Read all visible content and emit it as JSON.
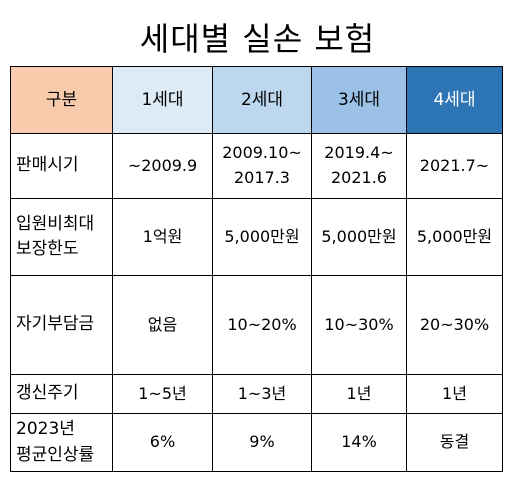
{
  "title": "세대별 실손 보험",
  "header": [
    "구분",
    "1세대",
    "2세대",
    "3세대",
    "4세대"
  ],
  "rows": [
    {
      "label": [
        "판매시기"
      ],
      "cells": [
        [
          "~2009.9"
        ],
        [
          "2009.10~",
          "2017.3"
        ],
        [
          "2019.4~",
          "2021.6"
        ],
        [
          "2021.7~"
        ]
      ]
    },
    {
      "label": [
        "입원비최대",
        "보장한도"
      ],
      "cells": [
        [
          "1억원"
        ],
        [
          "5,000만원"
        ],
        [
          "5,000만원"
        ],
        [
          "5,000만원"
        ]
      ]
    },
    {
      "label": [
        "자기부담금"
      ],
      "cells": [
        [
          "없음"
        ],
        [
          "10~20%"
        ],
        [
          "10~30%"
        ],
        [
          "20~30%"
        ]
      ]
    },
    {
      "label": [
        "갱신주기"
      ],
      "cells": [
        [
          "1~5년"
        ],
        [
          "1~3년"
        ],
        [
          "1년"
        ],
        [
          "1년"
        ]
      ]
    },
    {
      "label": [
        "2023년",
        "평균인상률"
      ],
      "cells": [
        [
          "6%"
        ],
        [
          "9%"
        ],
        [
          "14%"
        ],
        [
          "동결"
        ]
      ]
    }
  ],
  "colors": {
    "header_label_bg": "#f8cbad",
    "gen1_bg": "#ddebf7",
    "gen2_bg": "#bdd7ee",
    "gen3_bg": "#9bc2e6",
    "gen4_bg": "#2e75b6",
    "gen4_text": "#ffffff"
  }
}
